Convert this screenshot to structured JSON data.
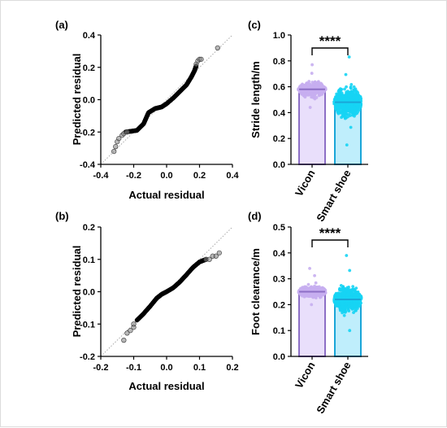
{
  "chart_data": [
    {
      "panel": "(a)",
      "type": "scatter",
      "xlabel": "Actual residual",
      "ylabel": "Predicted residual",
      "xlim": [
        -0.4,
        0.4
      ],
      "ylim": [
        -0.4,
        0.4
      ],
      "xticks": [
        "-0.4",
        "-0.2",
        "0.0",
        "0.2",
        "0.4"
      ],
      "yticks": [
        "-0.4",
        "-0.2",
        "0.0",
        "0.2",
        "0.4"
      ],
      "reference_line": "y = x (dotted)",
      "curve": [
        [
          -0.25,
          -0.2
        ],
        [
          -0.18,
          -0.19
        ],
        [
          -0.14,
          -0.15
        ],
        [
          -0.11,
          -0.08
        ],
        [
          -0.07,
          -0.055
        ],
        [
          -0.03,
          -0.045
        ],
        [
          0.0,
          -0.025
        ],
        [
          0.04,
          0.01
        ],
        [
          0.08,
          0.05
        ],
        [
          0.12,
          0.09
        ],
        [
          0.15,
          0.14
        ],
        [
          0.17,
          0.18
        ],
        [
          0.18,
          0.21
        ]
      ],
      "outliers": [
        [
          -0.32,
          -0.32
        ],
        [
          -0.31,
          -0.29
        ],
        [
          -0.3,
          -0.26
        ],
        [
          -0.29,
          -0.24
        ],
        [
          -0.27,
          -0.22
        ],
        [
          -0.26,
          -0.21
        ],
        [
          -0.24,
          -0.2
        ],
        [
          0.18,
          0.22
        ],
        [
          0.19,
          0.24
        ],
        [
          0.2,
          0.25
        ],
        [
          0.21,
          0.25
        ],
        [
          0.31,
          0.32
        ]
      ]
    },
    {
      "panel": "(b)",
      "type": "scatter",
      "xlabel": "Actual residual",
      "ylabel": "Predicted residual",
      "xlim": [
        -0.2,
        0.2
      ],
      "ylim": [
        -0.2,
        0.2
      ],
      "xticks": [
        "-0.2",
        "-0.1",
        "0.0",
        "0.1",
        "0.2"
      ],
      "yticks": [
        "-0.2",
        "-0.1",
        "0.0",
        "0.1",
        "0.2"
      ],
      "reference_line": "y = x (dotted)",
      "curve": [
        [
          -0.09,
          -0.088
        ],
        [
          -0.07,
          -0.068
        ],
        [
          -0.05,
          -0.045
        ],
        [
          -0.03,
          -0.02
        ],
        [
          -0.015,
          -0.008
        ],
        [
          0.0,
          0.0
        ],
        [
          0.02,
          0.012
        ],
        [
          0.04,
          0.03
        ],
        [
          0.06,
          0.052
        ],
        [
          0.08,
          0.075
        ],
        [
          0.1,
          0.092
        ],
        [
          0.12,
          0.1
        ]
      ],
      "outliers": [
        [
          -0.13,
          -0.15
        ],
        [
          -0.12,
          -0.128
        ],
        [
          -0.11,
          -0.12
        ],
        [
          -0.1,
          -0.11
        ],
        [
          -0.1,
          -0.1
        ],
        [
          0.12,
          0.1
        ],
        [
          0.13,
          0.1
        ],
        [
          0.14,
          0.11
        ],
        [
          0.15,
          0.11
        ],
        [
          0.16,
          0.12
        ]
      ]
    },
    {
      "panel": "(c)",
      "type": "bar",
      "ylabel": "Stride length/m",
      "categories": [
        "Vicon",
        "Smart shoe"
      ],
      "values": [
        0.58,
        0.48
      ],
      "colors": [
        "#c7aef0",
        "#16d4f4"
      ],
      "bar_fill": [
        "#e9dffb",
        "#bfeefc"
      ],
      "scatter_range": [
        [
          0.44,
          0.77
        ],
        [
          0.15,
          0.83
        ]
      ],
      "ylim": [
        0.0,
        1.0
      ],
      "yticks": [
        "0.0",
        "0.2",
        "0.4",
        "0.6",
        "0.8",
        "1.0"
      ],
      "significance": "****"
    },
    {
      "panel": "(d)",
      "type": "bar",
      "ylabel": "Foot clearance/m",
      "categories": [
        "Vicon",
        "Smart  shoe"
      ],
      "values": [
        0.25,
        0.22
      ],
      "colors": [
        "#c7aef0",
        "#16d4f4"
      ],
      "bar_fill": [
        "#e9dffb",
        "#bfeefc"
      ],
      "scatter_range": [
        [
          0.2,
          0.34
        ],
        [
          0.1,
          0.39
        ]
      ],
      "ylim": [
        0.0,
        0.5
      ],
      "yticks": [
        "0.0",
        "0.1",
        "0.2",
        "0.3",
        "0.4",
        "0.5"
      ],
      "significance": "****"
    }
  ]
}
